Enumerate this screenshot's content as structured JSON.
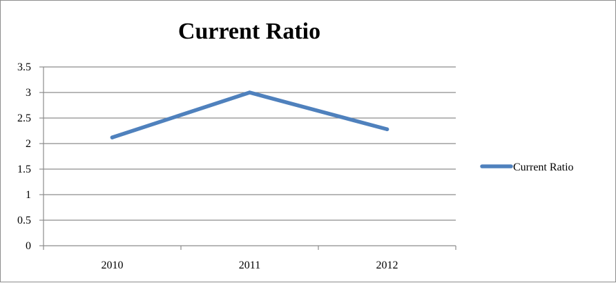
{
  "chart_data": {
    "type": "line",
    "title": "Current Ratio",
    "xlabel": "",
    "ylabel": "",
    "categories": [
      "2010",
      "2011",
      "2012"
    ],
    "series": [
      {
        "name": "Current Ratio",
        "values": [
          2.12,
          3.0,
          2.28
        ],
        "color": "#4f81bd"
      }
    ],
    "ylim": [
      0,
      3.5
    ],
    "yticks": [
      "0",
      "0.5",
      "1",
      "1.5",
      "2",
      "2.5",
      "3",
      "3.5"
    ],
    "grid": true,
    "legend_position": "right"
  }
}
